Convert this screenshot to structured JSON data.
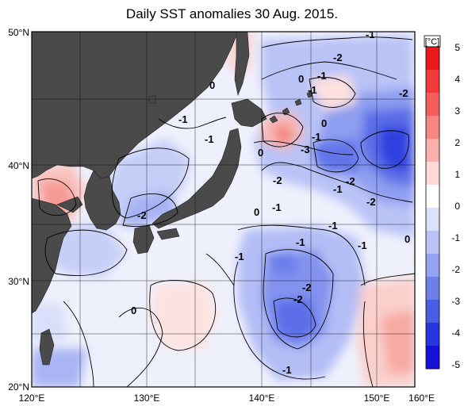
{
  "title": "Daily SST anomalies 30 Aug. 2015.",
  "colorbar": {
    "unit": "[°C]",
    "ticks": [
      "5",
      "4",
      "3",
      "2",
      "1",
      "0",
      "-1",
      "-2",
      "-3",
      "-4",
      "-5"
    ],
    "colors": [
      "#e8191c",
      "#f03b3a",
      "#f55e5c",
      "#f98682",
      "#fcb0ab",
      "#fddad6",
      "#ffffff",
      "#dde2fb",
      "#b9c3f6",
      "#94a3f0",
      "#6d80ea",
      "#4a5ee4",
      "#2636de",
      "#1410d8"
    ]
  },
  "axes": {
    "x_ticks": [
      "120°E",
      "130°E",
      "140°E",
      "150°E",
      "160°E"
    ],
    "y_ticks": [
      "50°N",
      "40°N",
      "30°N",
      "20°N"
    ]
  },
  "contour_labels": [
    "-1",
    "-2",
    "0",
    "-1",
    "-1",
    "-2",
    "0",
    "-1",
    "-1",
    "-1",
    "-3",
    "-2",
    "-1",
    "-2",
    "-1",
    "-2",
    "0",
    "0",
    "-1",
    "-1",
    "-2",
    "0",
    "-1",
    "0",
    "-1",
    "-2",
    "-2",
    "0",
    "-1"
  ],
  "colors": {
    "land": "#4a4a4a",
    "ocean_neutral": "#f4f5fd",
    "grid": "#000000"
  }
}
